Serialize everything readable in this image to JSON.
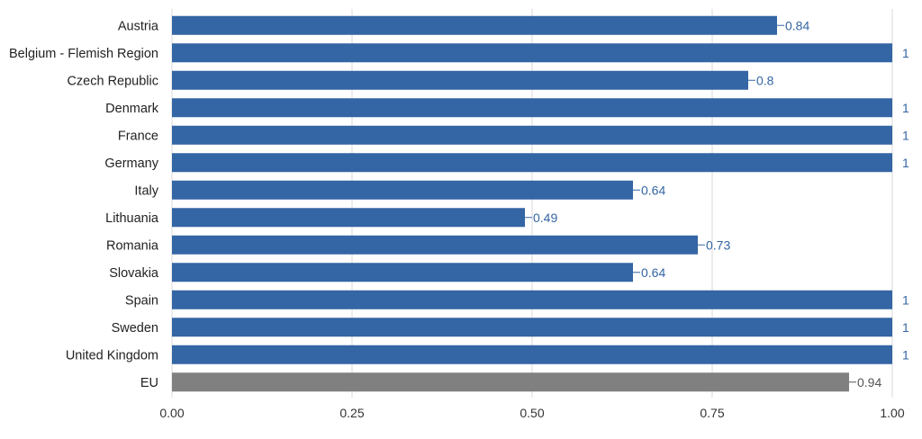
{
  "chart_data": {
    "type": "bar",
    "orientation": "horizontal",
    "categories": [
      "Austria",
      "Belgium - Flemish Region",
      "Czech Republic",
      "Denmark",
      "France",
      "Germany",
      "Italy",
      "Lithuania",
      "Romania",
      "Slovakia",
      "Spain",
      "Sweden",
      "United Kingdom",
      "EU"
    ],
    "values": [
      0.84,
      1,
      0.8,
      1,
      1,
      1,
      0.64,
      0.49,
      0.73,
      0.64,
      1,
      1,
      1,
      0.94
    ],
    "value_labels": [
      "0.84",
      "1",
      "0.8",
      "1",
      "1",
      "1",
      "0.64",
      "0.49",
      "0.73",
      "0.64",
      "1",
      "1",
      "1",
      "0.94"
    ],
    "xlim": [
      0,
      1
    ],
    "xticks": [
      0,
      0.25,
      0.5,
      0.75,
      1
    ],
    "xtick_labels": [
      "0.00",
      "0.25",
      "0.50",
      "0.75",
      "1.00"
    ],
    "title": "",
    "xlabel": "",
    "ylabel": "",
    "grid": "vertical",
    "legend": "none",
    "colors": {
      "bar": "#3465a4",
      "highlight_bar": "#808080",
      "highlight_category": "EU",
      "grid": "#d9d9d9",
      "label_country": "#3465a4",
      "label_highlight": "#555555"
    }
  }
}
